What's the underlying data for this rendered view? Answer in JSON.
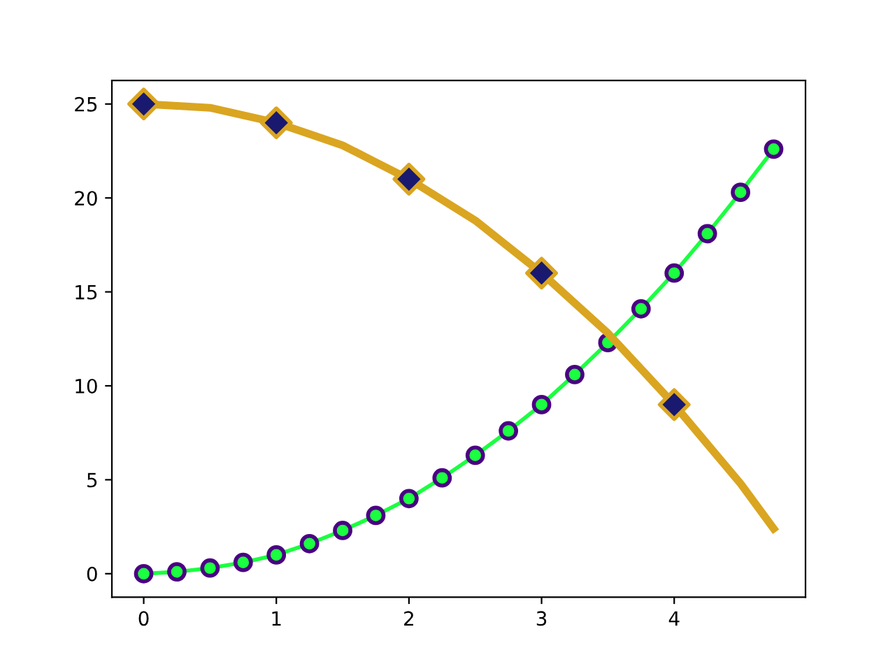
{
  "chart_data": {
    "type": "line",
    "x": [
      0,
      0.25,
      0.5,
      0.75,
      1,
      1.25,
      1.5,
      1.75,
      2,
      2.25,
      2.5,
      2.75,
      3,
      3.25,
      3.5,
      3.75,
      4,
      4.25,
      4.5,
      4.75
    ],
    "series": [
      {
        "color": "#1aff40",
        "marker": "circle",
        "values": [
          0,
          0.1,
          0.3,
          0.6,
          1,
          1.6,
          2.3,
          3.1,
          4,
          5.1,
          6.3,
          7.6,
          9,
          10.6,
          12.3,
          14.1,
          16,
          18.1,
          20.3,
          22.6
        ]
      },
      {
        "color": "#daa520",
        "marker": "none",
        "values": [
          25,
          24.9,
          24.8,
          24.4,
          24,
          23.4,
          22.8,
          21.9,
          21,
          19.9,
          18.8,
          17.4,
          16,
          14.4,
          12.8,
          10.9,
          9,
          6.9,
          4.8,
          2.4
        ]
      },
      {
        "type": "scatter",
        "color": "#191970",
        "marker": "diamond",
        "x": [
          0,
          1,
          2,
          3,
          4
        ],
        "values": [
          25,
          24,
          21,
          16,
          9
        ]
      }
    ],
    "xlim": [
      -0.24,
      4.99
    ],
    "ylim": [
      -1.25,
      26.25
    ],
    "xticks": [
      0,
      1,
      2,
      3,
      4
    ],
    "yticks": [
      0,
      5,
      10,
      15,
      20,
      25
    ],
    "line_style": "solid"
  }
}
